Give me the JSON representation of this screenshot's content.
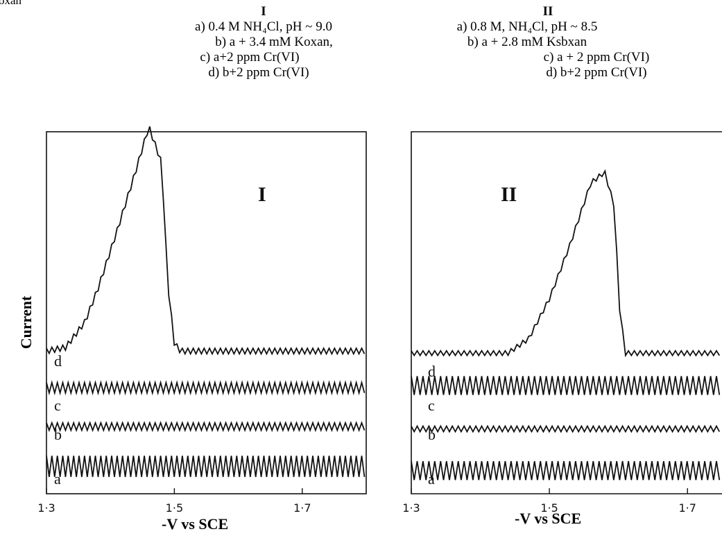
{
  "header": {
    "top_cut_text": "oxan"
  },
  "legends": [
    {
      "roman": "I",
      "lines": [
        "a) 0.4 M NH₄Cl, pH ~ 9.0",
        "b)  a + 3.4 mM Koxan,",
        "c)  a+2 ppm Cr(VI)",
        "d) b+2 ppm Cr(VI)"
      ]
    },
    {
      "roman": "II",
      "lines": [
        "a) 0.8 M, NH₄Cl, pH ~ 8.5",
        "b) a + 2.8 mM Ksbxan",
        "c) a + 2 ppm Cr(VI)",
        "d) b+2 ppm Cr(VI)"
      ]
    }
  ],
  "ylabel": "Current",
  "chart_data": [
    {
      "type": "line",
      "panel_label": "I",
      "xlabel": "-V vs SCE",
      "xlim": [
        1.3,
        1.8
      ],
      "xticks": [
        1.3,
        1.5,
        1.7
      ],
      "xtick_labels": [
        "1·3",
        "1·5",
        "1·7"
      ],
      "series": [
        {
          "name": "a",
          "baseline": 0.06,
          "amplitude": 0.045,
          "period": 0.0085
        },
        {
          "name": "b",
          "baseline": 0.18,
          "amplitude": 0.016,
          "period": 0.0085
        },
        {
          "name": "c",
          "baseline": 0.285,
          "amplitude": 0.022,
          "period": 0.0085
        },
        {
          "name": "d",
          "baseline": 0.39,
          "amplitude": 0.012,
          "period": 0.0085,
          "peak": [
            [
              1.3,
              0.0
            ],
            [
              1.33,
              0.01
            ],
            [
              1.36,
              0.08
            ],
            [
              1.38,
              0.17
            ],
            [
              1.41,
              0.33
            ],
            [
              1.44,
              0.5
            ],
            [
              1.46,
              0.62
            ],
            [
              1.48,
              0.52
            ],
            [
              1.49,
              0.18
            ],
            [
              1.5,
              0.02
            ],
            [
              1.51,
              0.0
            ],
            [
              1.8,
              0.0
            ]
          ]
        }
      ]
    },
    {
      "type": "line",
      "panel_label": "II",
      "xlabel": "-V vs SCE",
      "xlim": [
        1.3,
        1.75
      ],
      "xticks": [
        1.3,
        1.5,
        1.7
      ],
      "xtick_labels": [
        "1·3",
        "1·5",
        "1·7"
      ],
      "series": [
        {
          "name": "a",
          "baseline": 0.05,
          "amplitude": 0.04,
          "period": 0.0085
        },
        {
          "name": "b",
          "baseline": 0.175,
          "amplitude": 0.012,
          "period": 0.0085
        },
        {
          "name": "c",
          "baseline": 0.285,
          "amplitude": 0.04,
          "period": 0.0085
        },
        {
          "name": "d",
          "baseline": 0.385,
          "amplitude": 0.01,
          "period": 0.0085,
          "peak": [
            [
              1.3,
              0.0
            ],
            [
              1.44,
              0.0
            ],
            [
              1.47,
              0.04
            ],
            [
              1.5,
              0.15
            ],
            [
              1.53,
              0.3
            ],
            [
              1.56,
              0.47
            ],
            [
              1.58,
              0.5
            ],
            [
              1.595,
              0.4
            ],
            [
              1.6,
              0.15
            ],
            [
              1.61,
              0.0
            ],
            [
              1.75,
              0.0
            ]
          ]
        }
      ]
    }
  ]
}
